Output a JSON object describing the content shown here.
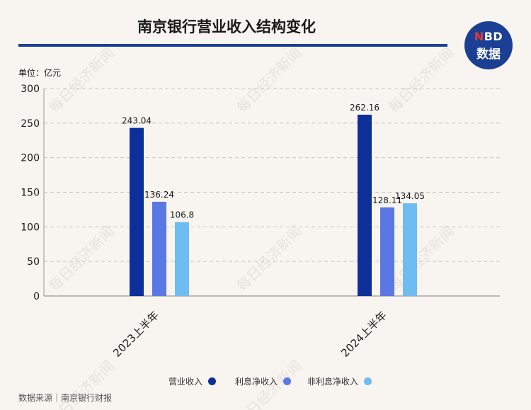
{
  "header": {
    "title": "南京银行营业收入结构变化",
    "logo_top": "NBD",
    "logo_top_accent": "N",
    "logo_bottom": "数据",
    "watermark": "每日经济新闻"
  },
  "unit_label": "单位：亿元",
  "source": "数据来源｜南京银行财报",
  "colors": {
    "series_1": "#0c2f9a",
    "series_2": "#5a78e3",
    "series_3": "#6dbcf2",
    "accent": "#1b3f95"
  },
  "chart_data": {
    "type": "bar",
    "title": "南京银行营业收入结构变化",
    "xlabel": "",
    "ylabel": "单位：亿元",
    "categories": [
      "2023上半年",
      "2024上半年"
    ],
    "series": [
      {
        "name": "营业收入",
        "values": [
          243.04,
          262.16
        ]
      },
      {
        "name": "利息净收入",
        "values": [
          136.24,
          128.11
        ]
      },
      {
        "name": "非利息净收入",
        "values": [
          106.8,
          134.05
        ]
      }
    ],
    "value_labels": [
      [
        "243.04",
        "262.16"
      ],
      [
        "136.24",
        "128.11"
      ],
      [
        "106.8",
        "134.05"
      ]
    ],
    "ylim": [
      0,
      300
    ],
    "yticks": [
      0,
      50,
      100,
      150,
      200,
      250,
      300
    ],
    "grid": true,
    "legend": "bottom"
  }
}
